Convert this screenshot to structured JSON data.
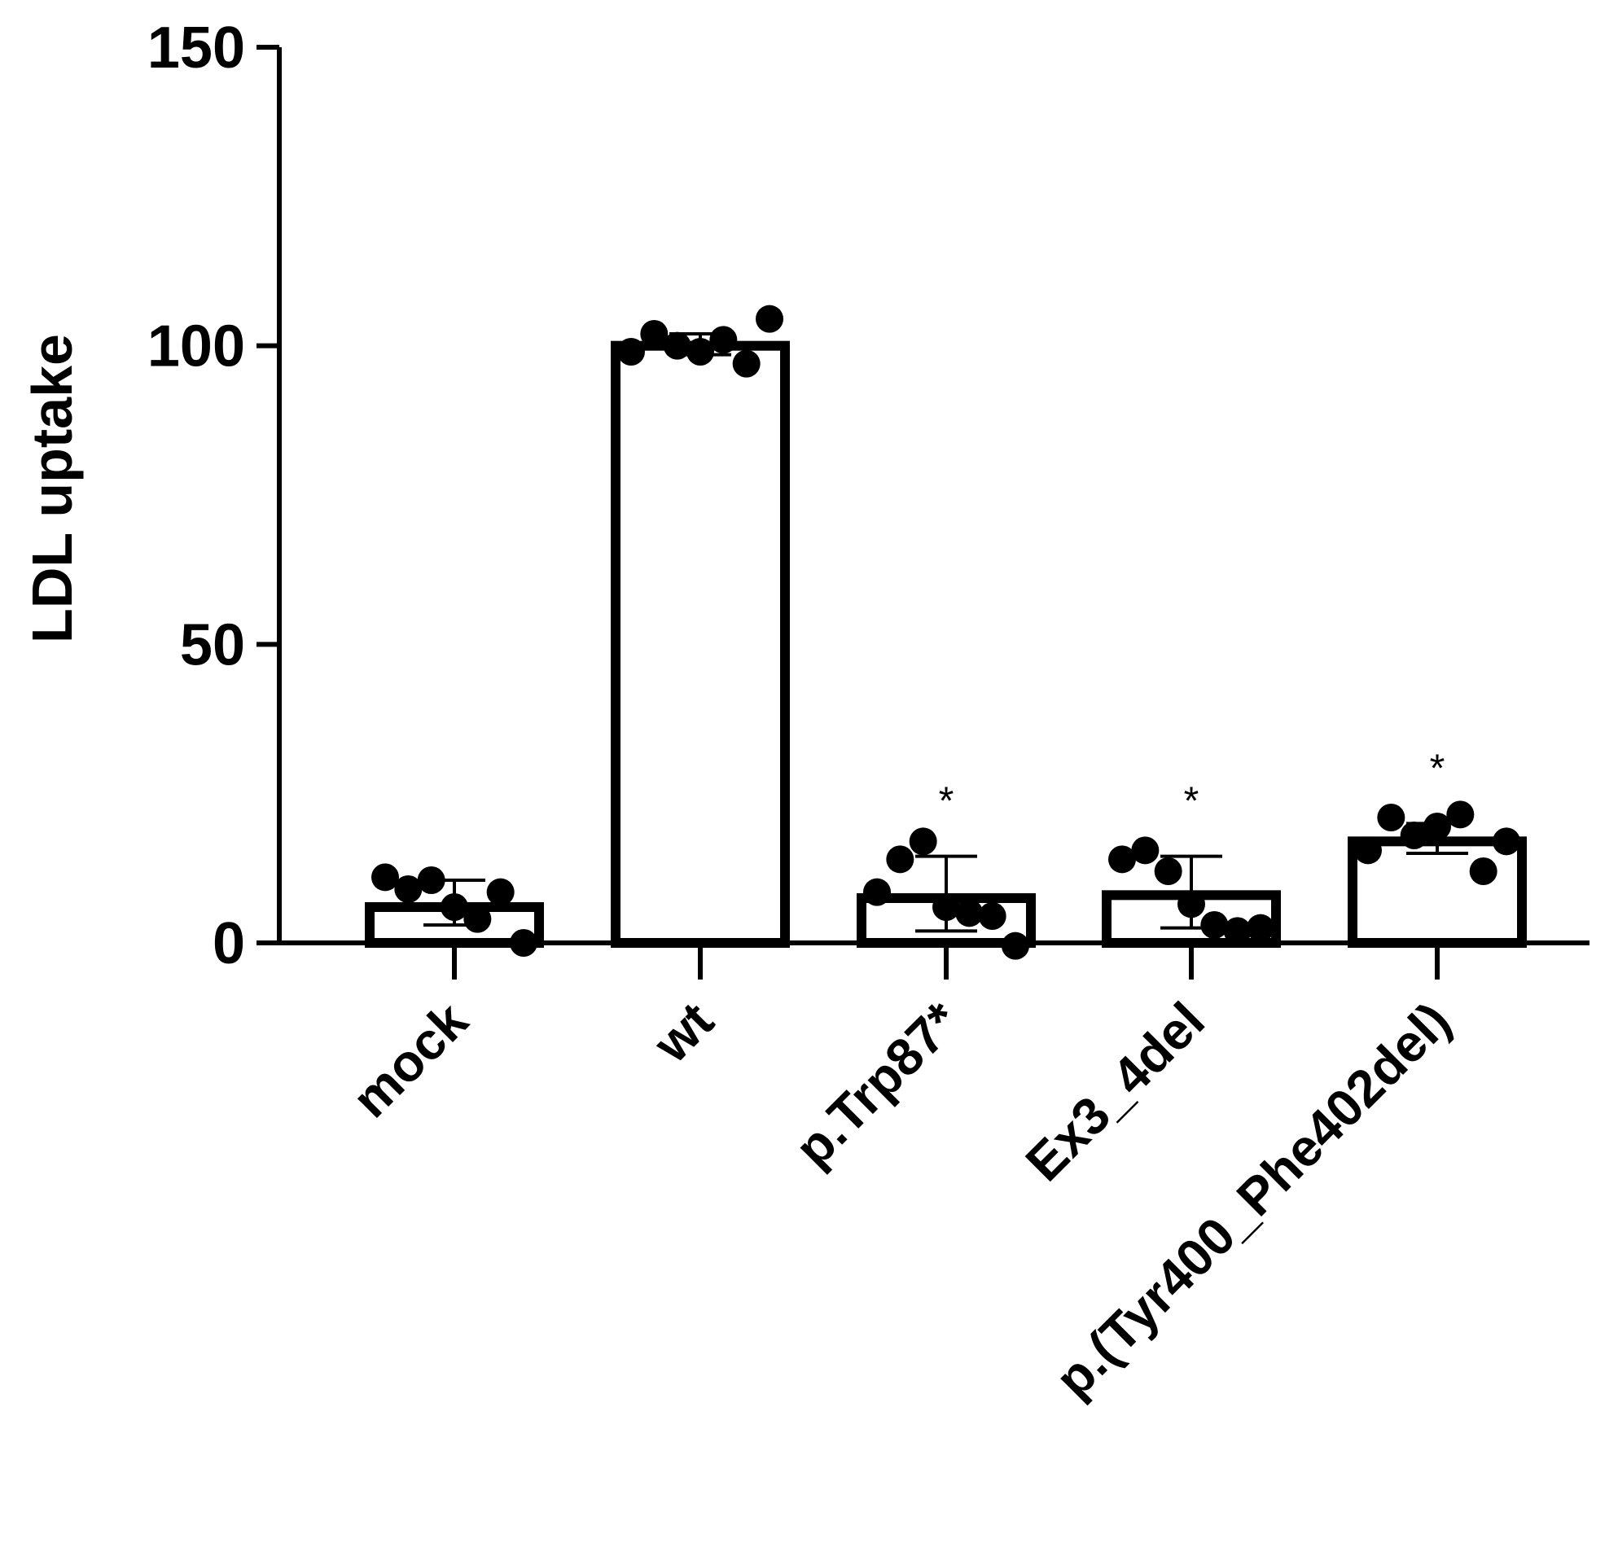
{
  "chart_data": {
    "type": "bar",
    "ylabel": "LDL uptake",
    "ylim": [
      0,
      150
    ],
    "yticks": [
      0,
      50,
      100,
      150
    ],
    "categories": [
      "mock",
      "wt",
      "p.Trp87*",
      "Ex3_4del",
      "p.(Tyr400_Phe402del)"
    ],
    "values": [
      6,
      100,
      7.5,
      8,
      17
    ],
    "error_bars": [
      {
        "low": 3,
        "high": 10.5
      },
      {
        "low": 98.5,
        "high": 102
      },
      {
        "low": 2,
        "high": 14.5
      },
      {
        "low": 2.5,
        "high": 14.5
      },
      {
        "low": 15,
        "high": 20
      }
    ],
    "points": [
      [
        11,
        9,
        10.5,
        6,
        4,
        8.5,
        0
      ],
      [
        99,
        102,
        100,
        99,
        101,
        97,
        104.5
      ],
      [
        8.5,
        14,
        17,
        6,
        5,
        4.5,
        -0.5
      ],
      [
        14,
        15.5,
        12,
        6.5,
        3,
        2,
        2.5
      ],
      [
        15.5,
        21,
        18,
        19.5,
        21.5,
        12,
        17
      ]
    ],
    "annotations": [
      "",
      "",
      "*",
      "*",
      "*"
    ]
  }
}
